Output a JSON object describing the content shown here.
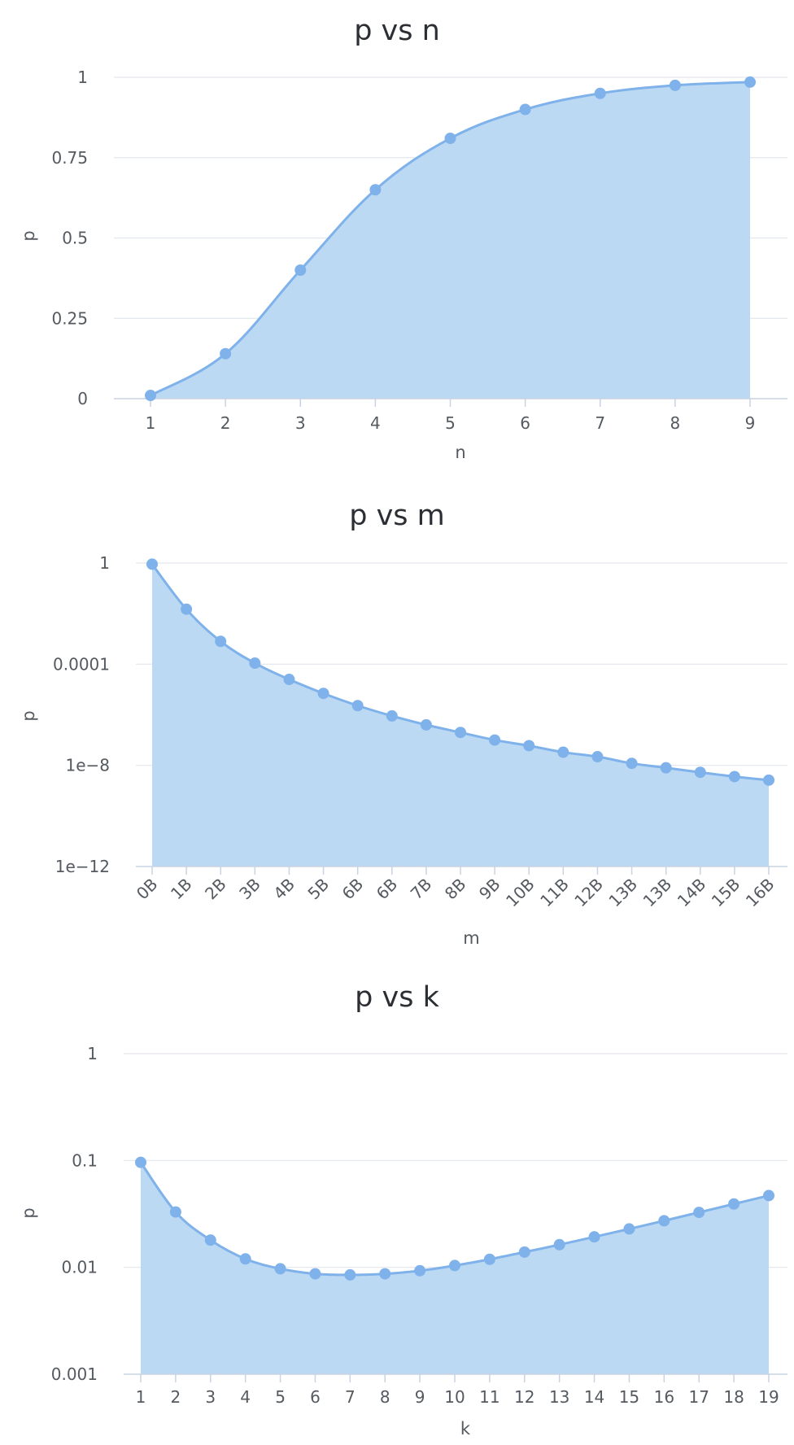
{
  "chart_data": [
    {
      "type": "area",
      "title": "p vs n",
      "xlabel": "n",
      "ylabel": "p",
      "yscale": "linear",
      "ylim": [
        0,
        1
      ],
      "yticks": [
        "0",
        "0.25",
        "0.5",
        "0.75",
        "1"
      ],
      "ytick_values": [
        0,
        0.25,
        0.5,
        0.75,
        1
      ],
      "categories": [
        "1",
        "2",
        "3",
        "4",
        "5",
        "6",
        "7",
        "8",
        "9"
      ],
      "series": [
        {
          "values": [
            0.01,
            0.14,
            0.4,
            0.65,
            0.81,
            0.9,
            0.95,
            0.975,
            0.985
          ]
        }
      ],
      "color": "#7fb2ea",
      "fill": "#bcd9f3",
      "grid": true
    },
    {
      "type": "area",
      "title": "p vs m",
      "xlabel": "m",
      "ylabel": "p",
      "yscale": "log",
      "ylim": [
        1e-12,
        1
      ],
      "yticks": [
        "1e−12",
        "1e−8",
        "0.0001",
        "1"
      ],
      "ytick_values": [
        1e-12,
        1e-08,
        0.0001,
        1
      ],
      "categories": [
        "0B",
        "1B",
        "2B",
        "3B",
        "4B",
        "5B",
        "6B",
        "6B",
        "7B",
        "8B",
        "9B",
        "10B",
        "11B",
        "12B",
        "13B",
        "13B",
        "14B",
        "15B",
        "16B"
      ],
      "series": [
        {
          "values": [
            0.9,
            0.015,
            0.0008,
            0.00011,
            2.5e-05,
            7e-06,
            2.3e-06,
            9e-07,
            4e-07,
            2e-07,
            1e-07,
            6e-08,
            3.3e-08,
            2.2e-08,
            1.2e-08,
            8e-09,
            5.3e-09,
            3.6e-09,
            2.6e-09
          ]
        }
      ],
      "color": "#7fb2ea",
      "fill": "#bcd9f3",
      "grid": true
    },
    {
      "type": "area",
      "title": "p vs k",
      "xlabel": "k",
      "ylabel": "p",
      "yscale": "log",
      "ylim": [
        0.001,
        1
      ],
      "yticks": [
        "0.001",
        "0.01",
        "0.1",
        "1"
      ],
      "ytick_values": [
        0.001,
        0.01,
        0.1,
        1
      ],
      "categories": [
        "1",
        "2",
        "3",
        "4",
        "5",
        "6",
        "7",
        "8",
        "9",
        "10",
        "11",
        "12",
        "13",
        "14",
        "15",
        "16",
        "17",
        "18",
        "19"
      ],
      "series": [
        {
          "values": [
            0.096,
            0.033,
            0.018,
            0.012,
            0.0097,
            0.0087,
            0.0085,
            0.0087,
            0.0093,
            0.0104,
            0.0119,
            0.0139,
            0.0163,
            0.0193,
            0.0229,
            0.0273,
            0.0327,
            0.0392,
            0.047
          ]
        }
      ],
      "color": "#7fb2ea",
      "fill": "#bcd9f3",
      "grid": true
    }
  ]
}
